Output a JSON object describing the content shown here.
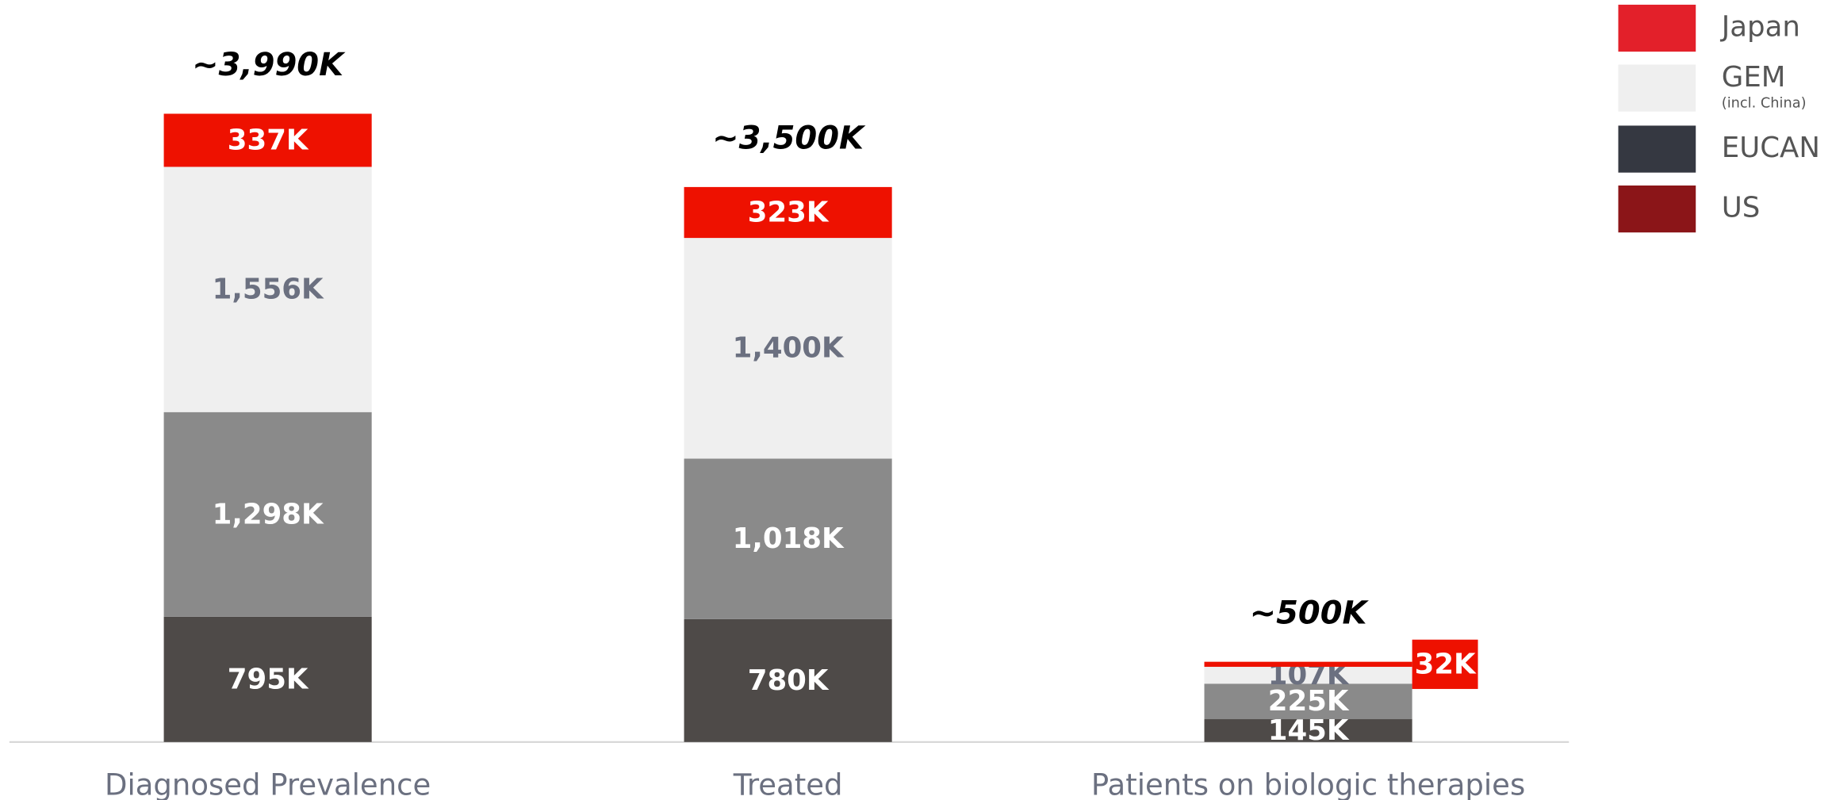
{
  "chart_data": {
    "type": "stacked_bar",
    "categories": [
      "Diagnosed Prevalence",
      "Treated",
      "Patients on biologic therapies"
    ],
    "totals": [
      "~3,990K",
      "~3,500K",
      "~500K"
    ],
    "series": [
      {
        "name": "US",
        "color": "#4e4a48",
        "legend_color": "#8b1518",
        "label_color": "#ffffff",
        "values": [
          795,
          780,
          145
        ],
        "value_labels": [
          "795K",
          "780K",
          "145K"
        ]
      },
      {
        "name": "EUCAN",
        "color": "#8a8a8a",
        "legend_color": "#353841",
        "label_color": "#ffffff",
        "values": [
          1298,
          1018,
          225
        ],
        "value_labels": [
          "1,298K",
          "1,018K",
          "225K"
        ]
      },
      {
        "name": "GEM",
        "legend_note": "(incl. China)",
        "color": "#efefef",
        "legend_color": "#efefef",
        "label_color": "#6b7080",
        "values": [
          1556,
          1400,
          107
        ],
        "value_labels": [
          "1,556K",
          "1,400K",
          "107K"
        ]
      },
      {
        "name": "Japan",
        "color": "#ee1100",
        "legend_color": "#e3202a",
        "label_color": "#ffffff",
        "values": [
          337,
          323,
          32
        ],
        "value_labels": [
          "337K",
          "323K",
          "32K"
        ]
      }
    ],
    "ylim": [
      0,
      4000
    ]
  }
}
